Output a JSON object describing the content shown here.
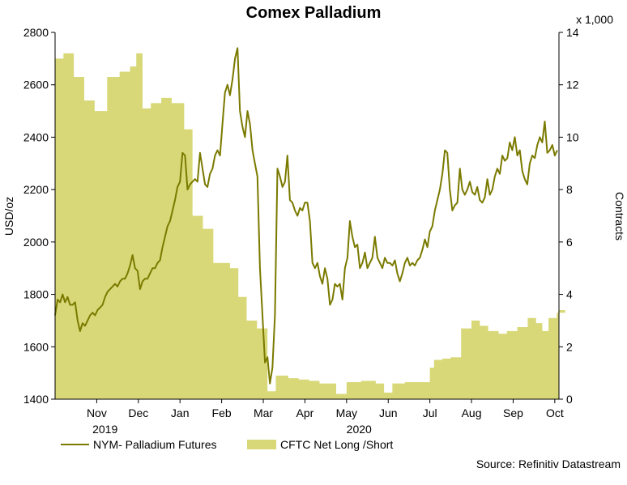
{
  "chart_data": {
    "type": "line+area",
    "title": "Comex Palladium",
    "ylabel_left": "USD/oz",
    "ylabel_right": "Contracts",
    "right_axis_multiplier_label": "x 1,000",
    "ylim_left": [
      1400,
      2800
    ],
    "ylim_right": [
      0,
      14
    ],
    "yticks_left": [
      "1400",
      "1600",
      "1800",
      "2000",
      "2200",
      "2400",
      "2600",
      "2800"
    ],
    "yticks_right": [
      "0",
      "2",
      "4",
      "6",
      "8",
      "10",
      "12",
      "14"
    ],
    "xlim": [
      0,
      12.1
    ],
    "months": [
      {
        "label": "Nov",
        "pos": 1.0
      },
      {
        "label": "Dec",
        "pos": 2.0
      },
      {
        "label": "Jan",
        "pos": 3.0
      },
      {
        "label": "Feb",
        "pos": 4.0
      },
      {
        "label": "Mar",
        "pos": 5.0
      },
      {
        "label": "Apr",
        "pos": 6.0
      },
      {
        "label": "May",
        "pos": 7.0
      },
      {
        "label": "Jun",
        "pos": 8.0
      },
      {
        "label": "Jul",
        "pos": 9.0
      },
      {
        "label": "Aug",
        "pos": 10.0
      },
      {
        "label": "Sep",
        "pos": 11.0
      },
      {
        "label": "Oct",
        "pos": 12.0
      }
    ],
    "years": [
      {
        "label": "2019",
        "pos": 1.2
      },
      {
        "label": "2020",
        "pos": 7.3
      }
    ],
    "series": [
      {
        "name": "NYM- Palladium Futures",
        "axis": "left",
        "kind": "line",
        "color": "#7a7a00",
        "points": [
          [
            0.0,
            1720
          ],
          [
            0.06,
            1780
          ],
          [
            0.12,
            1770
          ],
          [
            0.18,
            1800
          ],
          [
            0.24,
            1770
          ],
          [
            0.3,
            1790
          ],
          [
            0.36,
            1760
          ],
          [
            0.42,
            1760
          ],
          [
            0.48,
            1770
          ],
          [
            0.54,
            1700
          ],
          [
            0.6,
            1660
          ],
          [
            0.66,
            1690
          ],
          [
            0.72,
            1680
          ],
          [
            0.78,
            1700
          ],
          [
            0.84,
            1720
          ],
          [
            0.9,
            1730
          ],
          [
            0.96,
            1720
          ],
          [
            1.02,
            1740
          ],
          [
            1.08,
            1750
          ],
          [
            1.14,
            1760
          ],
          [
            1.2,
            1790
          ],
          [
            1.26,
            1810
          ],
          [
            1.32,
            1820
          ],
          [
            1.38,
            1830
          ],
          [
            1.44,
            1840
          ],
          [
            1.5,
            1830
          ],
          [
            1.56,
            1850
          ],
          [
            1.62,
            1860
          ],
          [
            1.68,
            1860
          ],
          [
            1.74,
            1880
          ],
          [
            1.8,
            1910
          ],
          [
            1.86,
            1950
          ],
          [
            1.92,
            1900
          ],
          [
            1.98,
            1890
          ],
          [
            2.04,
            1820
          ],
          [
            2.1,
            1850
          ],
          [
            2.16,
            1860
          ],
          [
            2.22,
            1860
          ],
          [
            2.28,
            1880
          ],
          [
            2.34,
            1900
          ],
          [
            2.4,
            1900
          ],
          [
            2.46,
            1920
          ],
          [
            2.52,
            1930
          ],
          [
            2.58,
            1980
          ],
          [
            2.64,
            2020
          ],
          [
            2.7,
            2060
          ],
          [
            2.76,
            2080
          ],
          [
            2.82,
            2120
          ],
          [
            2.88,
            2160
          ],
          [
            2.94,
            2210
          ],
          [
            3.0,
            2230
          ],
          [
            3.06,
            2340
          ],
          [
            3.12,
            2330
          ],
          [
            3.18,
            2200
          ],
          [
            3.24,
            2220
          ],
          [
            3.3,
            2230
          ],
          [
            3.36,
            2240
          ],
          [
            3.42,
            2230
          ],
          [
            3.48,
            2340
          ],
          [
            3.54,
            2280
          ],
          [
            3.6,
            2220
          ],
          [
            3.66,
            2210
          ],
          [
            3.72,
            2260
          ],
          [
            3.78,
            2280
          ],
          [
            3.84,
            2330
          ],
          [
            3.9,
            2350
          ],
          [
            3.96,
            2330
          ],
          [
            4.02,
            2450
          ],
          [
            4.08,
            2570
          ],
          [
            4.14,
            2600
          ],
          [
            4.2,
            2560
          ],
          [
            4.26,
            2620
          ],
          [
            4.32,
            2700
          ],
          [
            4.38,
            2740
          ],
          [
            4.44,
            2500
          ],
          [
            4.5,
            2440
          ],
          [
            4.56,
            2400
          ],
          [
            4.62,
            2500
          ],
          [
            4.68,
            2450
          ],
          [
            4.74,
            2350
          ],
          [
            4.8,
            2300
          ],
          [
            4.86,
            2250
          ],
          [
            4.92,
            1900
          ],
          [
            4.98,
            1720
          ],
          [
            5.04,
            1540
          ],
          [
            5.1,
            1560
          ],
          [
            5.16,
            1460
          ],
          [
            5.22,
            1520
          ],
          [
            5.28,
            1720
          ],
          [
            5.34,
            2280
          ],
          [
            5.4,
            2250
          ],
          [
            5.46,
            2210
          ],
          [
            5.52,
            2230
          ],
          [
            5.58,
            2330
          ],
          [
            5.64,
            2160
          ],
          [
            5.7,
            2150
          ],
          [
            5.76,
            2120
          ],
          [
            5.82,
            2100
          ],
          [
            5.88,
            2130
          ],
          [
            5.94,
            2120
          ],
          [
            6.0,
            2150
          ],
          [
            6.06,
            2150
          ],
          [
            6.12,
            2080
          ],
          [
            6.18,
            1920
          ],
          [
            6.24,
            1900
          ],
          [
            6.3,
            1920
          ],
          [
            6.36,
            1870
          ],
          [
            6.42,
            1840
          ],
          [
            6.48,
            1900
          ],
          [
            6.54,
            1860
          ],
          [
            6.6,
            1760
          ],
          [
            6.66,
            1780
          ],
          [
            6.72,
            1840
          ],
          [
            6.78,
            1830
          ],
          [
            6.84,
            1840
          ],
          [
            6.9,
            1780
          ],
          [
            6.96,
            1900
          ],
          [
            7.02,
            1940
          ],
          [
            7.08,
            2080
          ],
          [
            7.14,
            2020
          ],
          [
            7.2,
            1980
          ],
          [
            7.26,
            1990
          ],
          [
            7.32,
            1900
          ],
          [
            7.38,
            1920
          ],
          [
            7.44,
            1960
          ],
          [
            7.5,
            1900
          ],
          [
            7.56,
            1920
          ],
          [
            7.62,
            1940
          ],
          [
            7.68,
            2020
          ],
          [
            7.74,
            1940
          ],
          [
            7.8,
            1920
          ],
          [
            7.86,
            1900
          ],
          [
            7.92,
            1940
          ],
          [
            7.98,
            1920
          ],
          [
            8.04,
            1920
          ],
          [
            8.1,
            1910
          ],
          [
            8.16,
            1930
          ],
          [
            8.22,
            1880
          ],
          [
            8.28,
            1850
          ],
          [
            8.34,
            1880
          ],
          [
            8.4,
            1920
          ],
          [
            8.46,
            1940
          ],
          [
            8.52,
            1910
          ],
          [
            8.58,
            1920
          ],
          [
            8.64,
            1910
          ],
          [
            8.7,
            1930
          ],
          [
            8.76,
            1940
          ],
          [
            8.82,
            1970
          ],
          [
            8.88,
            2010
          ],
          [
            8.94,
            1980
          ],
          [
            9.0,
            2040
          ],
          [
            9.06,
            2060
          ],
          [
            9.12,
            2120
          ],
          [
            9.18,
            2160
          ],
          [
            9.24,
            2200
          ],
          [
            9.3,
            2260
          ],
          [
            9.36,
            2350
          ],
          [
            9.42,
            2340
          ],
          [
            9.48,
            2200
          ],
          [
            9.54,
            2120
          ],
          [
            9.6,
            2140
          ],
          [
            9.66,
            2150
          ],
          [
            9.72,
            2280
          ],
          [
            9.78,
            2200
          ],
          [
            9.84,
            2180
          ],
          [
            9.9,
            2200
          ],
          [
            9.96,
            2230
          ],
          [
            10.02,
            2190
          ],
          [
            10.08,
            2180
          ],
          [
            10.14,
            2210
          ],
          [
            10.2,
            2160
          ],
          [
            10.26,
            2150
          ],
          [
            10.32,
            2170
          ],
          [
            10.38,
            2240
          ],
          [
            10.44,
            2180
          ],
          [
            10.5,
            2200
          ],
          [
            10.56,
            2250
          ],
          [
            10.62,
            2280
          ],
          [
            10.68,
            2260
          ],
          [
            10.74,
            2330
          ],
          [
            10.8,
            2310
          ],
          [
            10.86,
            2320
          ],
          [
            10.92,
            2380
          ],
          [
            10.98,
            2350
          ],
          [
            11.04,
            2400
          ],
          [
            11.1,
            2330
          ],
          [
            11.16,
            2350
          ],
          [
            11.22,
            2270
          ],
          [
            11.28,
            2240
          ],
          [
            11.34,
            2220
          ],
          [
            11.4,
            2300
          ],
          [
            11.46,
            2330
          ],
          [
            11.52,
            2320
          ],
          [
            11.58,
            2370
          ],
          [
            11.64,
            2400
          ],
          [
            11.7,
            2380
          ],
          [
            11.76,
            2460
          ],
          [
            11.82,
            2340
          ],
          [
            11.88,
            2350
          ],
          [
            11.94,
            2370
          ],
          [
            12.0,
            2330
          ],
          [
            12.06,
            2350
          ],
          [
            12.12,
            2410
          ],
          [
            12.18,
            2420
          ],
          [
            12.24,
            2390
          ],
          [
            12.3,
            2390
          ]
        ]
      },
      {
        "name": "CFTC Net Long /Short",
        "axis": "right",
        "kind": "area-step",
        "color": "#d8d878",
        "steps": [
          [
            0.0,
            13.0
          ],
          [
            0.2,
            13.2
          ],
          [
            0.45,
            12.3
          ],
          [
            0.7,
            11.4
          ],
          [
            0.95,
            11.0
          ],
          [
            1.1,
            11.0
          ],
          [
            1.25,
            12.3
          ],
          [
            1.55,
            12.5
          ],
          [
            1.8,
            12.7
          ],
          [
            1.95,
            13.2
          ],
          [
            2.1,
            11.1
          ],
          [
            2.3,
            11.3
          ],
          [
            2.55,
            11.5
          ],
          [
            2.8,
            11.3
          ],
          [
            3.1,
            10.3
          ],
          [
            3.3,
            7.0
          ],
          [
            3.55,
            6.5
          ],
          [
            3.8,
            5.2
          ],
          [
            4.2,
            5.0
          ],
          [
            4.4,
            3.9
          ],
          [
            4.6,
            3.0
          ],
          [
            4.85,
            2.7
          ],
          [
            5.1,
            0.3
          ],
          [
            5.3,
            0.9
          ],
          [
            5.6,
            0.8
          ],
          [
            5.85,
            0.75
          ],
          [
            6.1,
            0.7
          ],
          [
            6.35,
            0.6
          ],
          [
            6.75,
            0.2
          ],
          [
            7.0,
            0.65
          ],
          [
            7.35,
            0.7
          ],
          [
            7.7,
            0.6
          ],
          [
            7.9,
            0.25
          ],
          [
            8.1,
            0.6
          ],
          [
            8.4,
            0.65
          ],
          [
            8.7,
            0.65
          ],
          [
            9.0,
            1.2
          ],
          [
            9.1,
            1.5
          ],
          [
            9.3,
            1.55
          ],
          [
            9.5,
            1.6
          ],
          [
            9.75,
            2.7
          ],
          [
            10.0,
            3.0
          ],
          [
            10.2,
            2.8
          ],
          [
            10.4,
            2.6
          ],
          [
            10.65,
            2.5
          ],
          [
            10.85,
            2.6
          ],
          [
            11.1,
            2.75
          ],
          [
            11.35,
            3.1
          ],
          [
            11.55,
            2.9
          ],
          [
            11.7,
            2.6
          ],
          [
            11.85,
            3.1
          ],
          [
            12.05,
            3.3
          ],
          [
            12.25,
            3.4
          ],
          [
            12.35,
            3.4
          ]
        ]
      }
    ],
    "legend": [
      {
        "label": "NYM- Palladium Futures",
        "kind": "line"
      },
      {
        "label": "CFTC Net Long /Short",
        "kind": "area"
      }
    ],
    "source": "Source: Refinitiv Datastream"
  }
}
